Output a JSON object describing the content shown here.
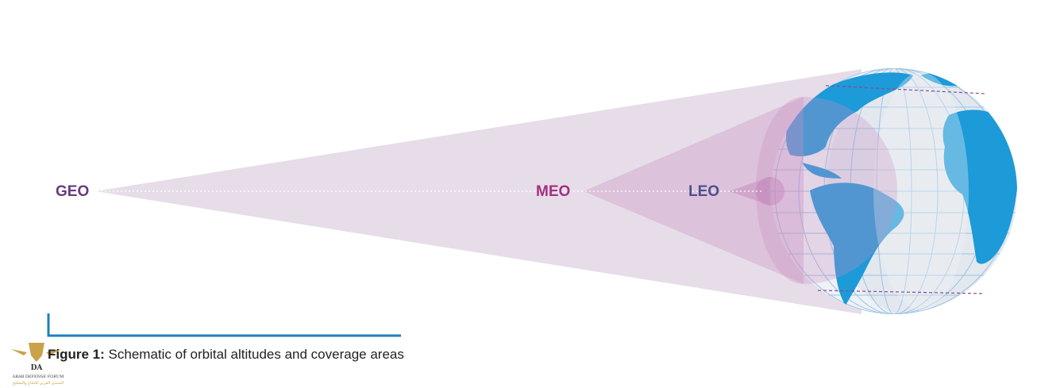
{
  "labels": {
    "geo": "GEO",
    "meo": "MEO",
    "leo": "LEO"
  },
  "caption": {
    "label": "Figure 1:",
    "text": "Schematic of orbital altitudes and coverage areas"
  },
  "watermark": {
    "logo": "DA",
    "name": "ARAB DEFENSE FORUM",
    "subtitle": "المنتدى العربي للدفاع والتسليح"
  }
}
